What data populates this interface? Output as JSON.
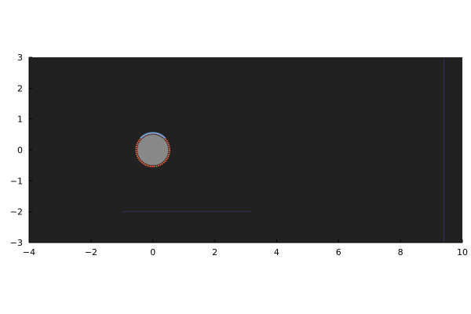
{
  "chart_data": {
    "type": "scatter",
    "title": "",
    "xlabel": "",
    "ylabel": "",
    "xlim": [
      -4,
      10
    ],
    "ylim": [
      -3,
      3
    ],
    "xticks": [
      -4,
      -2,
      0,
      2,
      4,
      6,
      8,
      10
    ],
    "yticks": [
      -3,
      -2,
      -1,
      0,
      1,
      2,
      3
    ],
    "xtick_labels": [
      "−4",
      "−2",
      "0",
      "2",
      "4",
      "6",
      "8",
      "10"
    ],
    "ytick_labels": [
      "−3",
      "−2",
      "−1",
      "0",
      "1",
      "2",
      "3"
    ],
    "grid": false,
    "legend": "none",
    "colors": {
      "plot_background": "#212121",
      "body_fill": "#888888",
      "lower_edge": "#ff6a3d",
      "upper_edge": "#6fa0d8",
      "lines": "#2c3358"
    },
    "body": {
      "shape": "circle",
      "center": [
        0,
        0
      ],
      "radius": 0.5
    },
    "line_segments": [
      {
        "x": [
          -1,
          3.2
        ],
        "y": [
          -2,
          -2
        ]
      },
      {
        "x": [
          9.4,
          9.4
        ],
        "y": [
          -3,
          3
        ]
      }
    ]
  }
}
